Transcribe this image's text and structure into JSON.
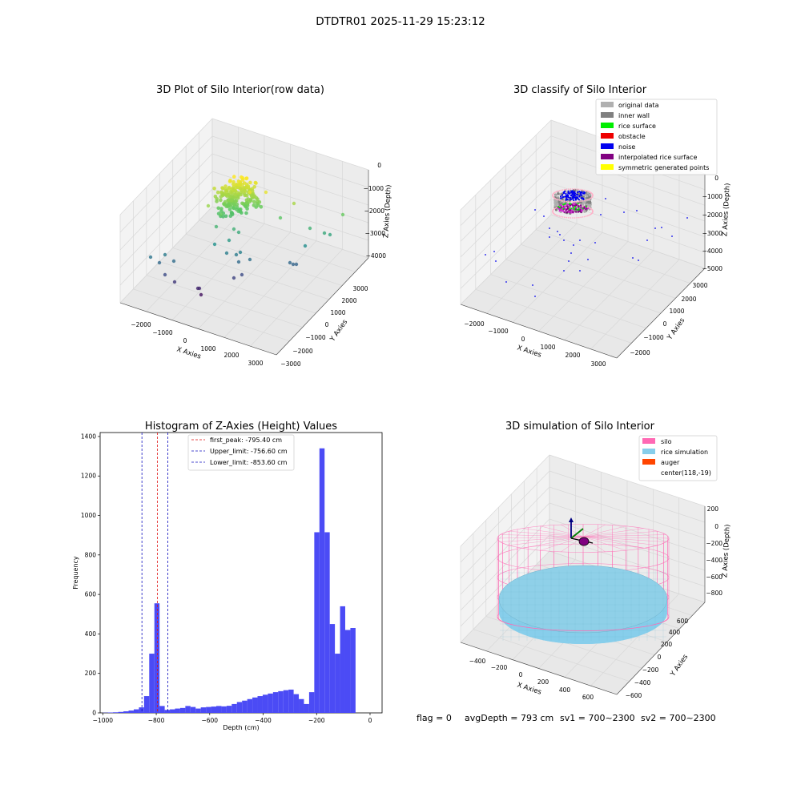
{
  "figure": {
    "title": "DTDTR01 2025-11-29 15:23:12",
    "footer": {
      "flag": "flag = 0",
      "avg": "avgDepth = 793 cm",
      "sv1": "sv1 = 700~2300",
      "sv2": "sv2 = 700~2300"
    }
  },
  "colors": {
    "hist_bar": "#4b4bf5",
    "first_peak": "#e01010",
    "limit": "#1010c0",
    "silo": "#ff69b4",
    "rice_sim": "#87ceeb",
    "auger": "#ff4500",
    "original": "#b0b0b0",
    "inner_wall": "#808080",
    "rice_surface": "#00ee00",
    "obstacle": "#ee0000",
    "noise": "#0000ee",
    "interp": "#800080",
    "symmetric": "#ffff00"
  },
  "chart_data": [
    {
      "type": "scatter",
      "title": "3D Plot of Silo Interior(row data)",
      "xlabel": "X Axies",
      "ylabel": "Y Axies",
      "zlabel": "Z Axies (Depth)",
      "x_ticks": [
        "−2000",
        "−1000",
        "0",
        "1000",
        "2000",
        "3000"
      ],
      "y_ticks": [
        "−3000",
        "−2000",
        "−1000",
        "0",
        "1000",
        "2000",
        "3000"
      ],
      "z_ticks": [
        "−4000",
        "−3000",
        "−2000",
        "−1000",
        "0"
      ],
      "xlim": [
        -2500,
        3500
      ],
      "ylim": [
        -3500,
        3500
      ],
      "zlim": [
        -4500,
        0
      ],
      "colormap": "viridis"
    },
    {
      "type": "scatter",
      "title": "3D classify of Silo Interior",
      "xlabel": "X Axies",
      "ylabel": "Y Axies",
      "zlabel": "Z Axies (Depth)",
      "x_ticks": [
        "−2000",
        "−1000",
        "0",
        "1000",
        "2000",
        "3000"
      ],
      "y_ticks": [
        "−2000",
        "−1000",
        "0",
        "1000",
        "2000",
        "3000"
      ],
      "z_ticks": [
        "−5000",
        "−4000",
        "−3000",
        "−2000",
        "−1000",
        "0"
      ],
      "xlim": [
        -2500,
        3500
      ],
      "ylim": [
        -2500,
        3500
      ],
      "zlim": [
        -5200,
        0
      ],
      "legend_position": "top-right",
      "legend": [
        {
          "label": "original data",
          "color": "#b0b0b0"
        },
        {
          "label": "inner wall",
          "color": "#808080"
        },
        {
          "label": "rice surface",
          "color": "#00ee00"
        },
        {
          "label": "obstacle",
          "color": "#ee0000"
        },
        {
          "label": "noise",
          "color": "#0000ee"
        },
        {
          "label": "interpolated rice surface",
          "color": "#800080"
        },
        {
          "label": "symmetric generated points",
          "color": "#ffff00"
        }
      ]
    },
    {
      "type": "bar",
      "title": "Histogram of Z-Axies (Height) Values",
      "xlabel": "Depth (cm)",
      "ylabel": "Frequency",
      "xlim": [
        -1010,
        45
      ],
      "ylim": [
        0,
        1420
      ],
      "x_ticks": [
        -1000,
        -800,
        -600,
        -400,
        -200,
        0
      ],
      "y_ticks": [
        0,
        200,
        400,
        600,
        800,
        1000,
        1200,
        1400
      ],
      "bin_start": -1000,
      "bin_width": 19.3,
      "values": [
        1,
        2,
        3,
        5,
        8,
        12,
        18,
        28,
        85,
        300,
        555,
        35,
        15,
        18,
        22,
        25,
        35,
        30,
        22,
        28,
        30,
        32,
        35,
        33,
        36,
        45,
        55,
        62,
        70,
        78,
        85,
        92,
        98,
        105,
        110,
        115,
        118,
        95,
        70,
        45,
        105,
        915,
        1340,
        915,
        450,
        300,
        540,
        420,
        430
      ],
      "lines": [
        {
          "label": "first_peak: -795.40 cm",
          "x": -795.4,
          "color": "#e01010"
        },
        {
          "label": "Upper_limit: -756.60 cm",
          "x": -756.6,
          "color": "#1010c0"
        },
        {
          "label": "Lower_limit: -853.60 cm",
          "x": -853.6,
          "color": "#1010c0"
        }
      ],
      "legend_position": "top-center"
    },
    {
      "type": "scatter",
      "title": "3D simulation of Silo Interior",
      "xlabel": "X Axies",
      "ylabel": "Y Axies",
      "zlabel": "Z Axies (Depth)",
      "x_ticks": [
        "−400",
        "−200",
        "0",
        "200",
        "400",
        "600"
      ],
      "y_ticks": [
        "−600",
        "−400",
        "−200",
        "0",
        "200",
        "400",
        "600"
      ],
      "z_ticks": [
        "−800",
        "−600",
        "−400",
        "−200",
        "0",
        "200"
      ],
      "xlim": [
        -500,
        700
      ],
      "ylim": [
        -700,
        700
      ],
      "zlim": [
        -950,
        300
      ],
      "legend_position": "top-right",
      "legend": [
        {
          "label": "silo",
          "color": "#ff69b4"
        },
        {
          "label": "rice simulation",
          "color": "#87ceeb"
        },
        {
          "label": "auger",
          "color": "#ff4500"
        },
        {
          "label": "center(118,-19)",
          "color": ""
        }
      ]
    }
  ]
}
